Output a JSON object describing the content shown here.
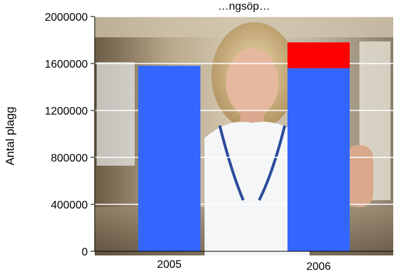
{
  "chart_data": {
    "type": "bar",
    "stacked": true,
    "title": "…ngsöp…",
    "xlabel": "",
    "ylabel": "Antal plagg",
    "categories": [
      "2005",
      "2006"
    ],
    "series": [
      {
        "values": [
          1580000,
          1560000
        ],
        "color": "#3366ff"
      },
      {
        "values": [
          0,
          220000
        ],
        "color": "#ff0000"
      }
    ],
    "ylim": [
      0,
      2000000
    ],
    "yticks": [
      0,
      400000,
      800000,
      1200000,
      1600000,
      2000000
    ],
    "grid": true,
    "legend": "none",
    "background": "photo"
  }
}
